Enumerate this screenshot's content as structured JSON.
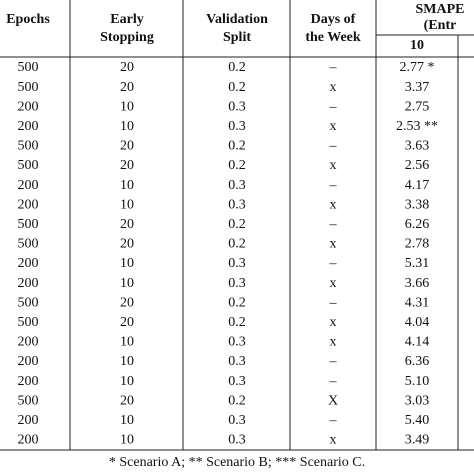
{
  "table": {
    "headers": [
      [
        "Epochs"
      ],
      [
        "Early",
        "Stopping"
      ],
      [
        "Validation",
        "Split"
      ],
      [
        "Days of",
        "the Week"
      ],
      [
        "SMAPE",
        "(Entr"
      ]
    ],
    "subheader": "10",
    "rows": [
      [
        "500",
        "20",
        "0.2",
        "–",
        "2.77 *"
      ],
      [
        "500",
        "20",
        "0.2",
        "x",
        "3.37"
      ],
      [
        "200",
        "10",
        "0.3",
        "–",
        "2.75"
      ],
      [
        "200",
        "10",
        "0.3",
        "x",
        "2.53 **"
      ],
      [
        "500",
        "20",
        "0.2",
        "–",
        "3.63"
      ],
      [
        "500",
        "20",
        "0.2",
        "x",
        "2.56"
      ],
      [
        "200",
        "10",
        "0.3",
        "–",
        "4.17"
      ],
      [
        "200",
        "10",
        "0.3",
        "x",
        "3.38"
      ],
      [
        "500",
        "20",
        "0.2",
        "–",
        "6.26"
      ],
      [
        "500",
        "20",
        "0.2",
        "x",
        "2.78"
      ],
      [
        "200",
        "10",
        "0.3",
        "–",
        "5.31"
      ],
      [
        "200",
        "10",
        "0.3",
        "x",
        "3.66"
      ],
      [
        "500",
        "20",
        "0.2",
        "–",
        "4.31"
      ],
      [
        "500",
        "20",
        "0.2",
        "x",
        "4.04"
      ],
      [
        "200",
        "10",
        "0.3",
        "x",
        "4.14"
      ],
      [
        "200",
        "10",
        "0.3",
        "–",
        "6.36"
      ],
      [
        "200",
        "10",
        "0.3",
        "–",
        "5.10"
      ],
      [
        "500",
        "20",
        "0.2",
        "X",
        "3.03"
      ],
      [
        "200",
        "10",
        "0.3",
        "–",
        "5.40"
      ],
      [
        "200",
        "10",
        "0.3",
        "x",
        "3.49"
      ]
    ],
    "footnote": "* Scenario A; ** Scenario B; *** Scenario C."
  }
}
